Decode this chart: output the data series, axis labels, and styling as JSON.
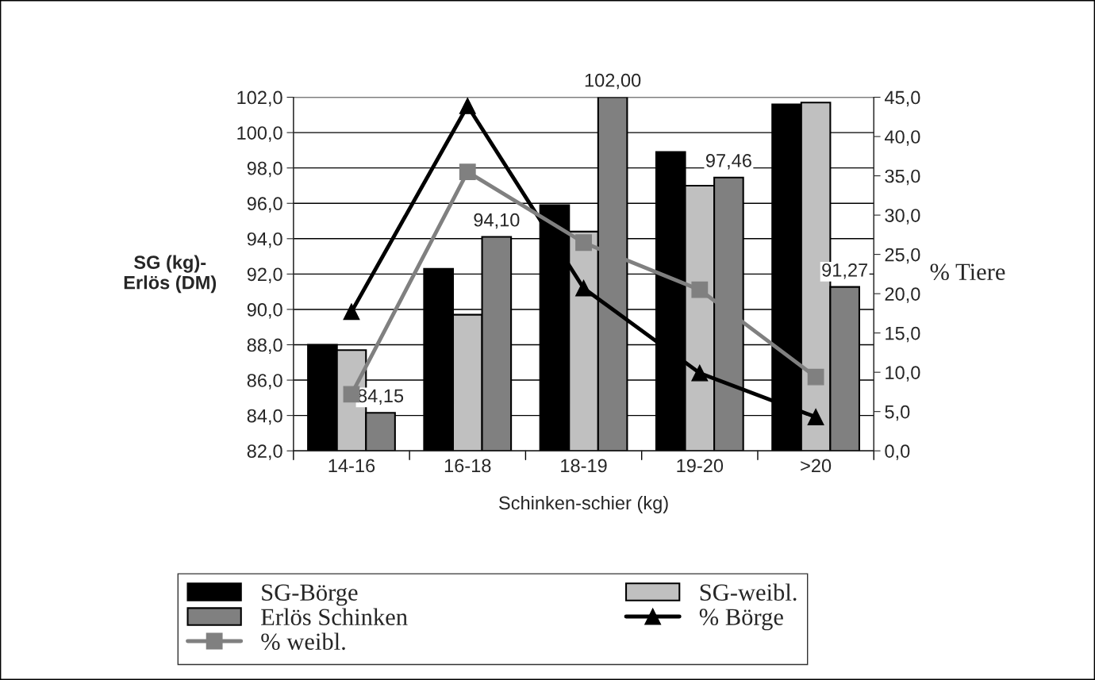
{
  "chart_data": {
    "type": "bar",
    "xlabel": "Schinken-schier (kg)",
    "ylabel": "SG (kg)-\nErlös (DM)",
    "y2label": "% Tiere",
    "categories": [
      "14-16",
      "16-18",
      "18-19",
      "19-20",
      ">20"
    ],
    "series": [
      {
        "name": "SG-Börge",
        "color": "#000000",
        "values": [
          88.0,
          92.3,
          95.9,
          98.9,
          101.6
        ]
      },
      {
        "name": "SG-weibl.",
        "color": "#c0c0c0",
        "values": [
          87.7,
          89.7,
          94.4,
          97.0,
          101.7
        ]
      },
      {
        "name": "Erlös Schinken",
        "color": "#808080",
        "values": [
          84.15,
          94.1,
          102.0,
          97.46,
          91.27
        ],
        "value_labels": [
          "84,15",
          "94,10",
          "102,00",
          "97,46",
          "91,27"
        ]
      },
      {
        "name": "% Börge",
        "type": "line",
        "axis": "y2",
        "color": "#000000",
        "marker": "triangle",
        "values": [
          17.7,
          43.9,
          20.7,
          9.9,
          4.3
        ]
      },
      {
        "name": "% weibl.",
        "type": "line",
        "axis": "y2",
        "color": "#808080",
        "marker": "square",
        "values": [
          7.2,
          35.5,
          26.5,
          20.5,
          9.4
        ]
      }
    ],
    "ylim": [
      82,
      102
    ],
    "yticks": [
      {
        "value": 82,
        "label": "82,0"
      },
      {
        "value": 84,
        "label": "84,0"
      },
      {
        "value": 86,
        "label": "86,0"
      },
      {
        "value": 88,
        "label": "88,0"
      },
      {
        "value": 90,
        "label": "90,0"
      },
      {
        "value": 92,
        "label": "92,0"
      },
      {
        "value": 94,
        "label": "94,0"
      },
      {
        "value": 96,
        "label": "96,0"
      },
      {
        "value": 98,
        "label": "98,0"
      },
      {
        "value": 100,
        "label": "100,0"
      },
      {
        "value": 102,
        "label": "102,0"
      }
    ],
    "y2lim": [
      0,
      45
    ],
    "y2ticks": [
      {
        "value": 0,
        "label": "0,0"
      },
      {
        "value": 5,
        "label": "5,0"
      },
      {
        "value": 10,
        "label": "10,0"
      },
      {
        "value": 15,
        "label": "15,0"
      },
      {
        "value": 20,
        "label": "20,0"
      },
      {
        "value": 25,
        "label": "25,0"
      },
      {
        "value": 30,
        "label": "30,0"
      },
      {
        "value": 35,
        "label": "35,0"
      },
      {
        "value": 40,
        "label": "40,0"
      },
      {
        "value": 45,
        "label": "45,0"
      }
    ],
    "grid": "y",
    "legend": "bottom"
  }
}
